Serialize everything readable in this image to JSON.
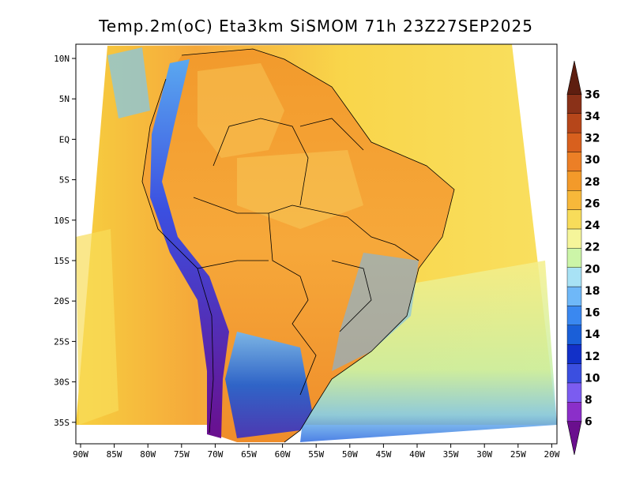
{
  "title": "Temp.2m(oC) Eta3km SiSMOM 71h 23Z27SEP2025",
  "latitude_labels": [
    "10N",
    "5N",
    "EQ",
    "5S",
    "10S",
    "15S",
    "20S",
    "25S",
    "30S",
    "35S"
  ],
  "longitude_labels": [
    "90W",
    "85W",
    "80W",
    "75W",
    "70W",
    "65W",
    "60W",
    "55W",
    "50W",
    "45W",
    "40W",
    "35W",
    "30W",
    "25W",
    "20W"
  ],
  "colorbar": {
    "labels": [
      "6",
      "8",
      "10",
      "12",
      "14",
      "16",
      "18",
      "20",
      "22",
      "24",
      "26",
      "28",
      "30",
      "32",
      "34",
      "36"
    ],
    "colors": [
      "#6a0f8e",
      "#8b2fc9",
      "#7b5cf0",
      "#3b4fe0",
      "#1230c8",
      "#1a5fd8",
      "#3a88f0",
      "#6fb8f8",
      "#a8e2f5",
      "#ccf5a8",
      "#f5f59a",
      "#f8dc5a",
      "#f7b83a",
      "#f39a2a",
      "#ec7f26",
      "#d8601e",
      "#b6461a",
      "#8a3118",
      "#5e1e10"
    ]
  }
}
